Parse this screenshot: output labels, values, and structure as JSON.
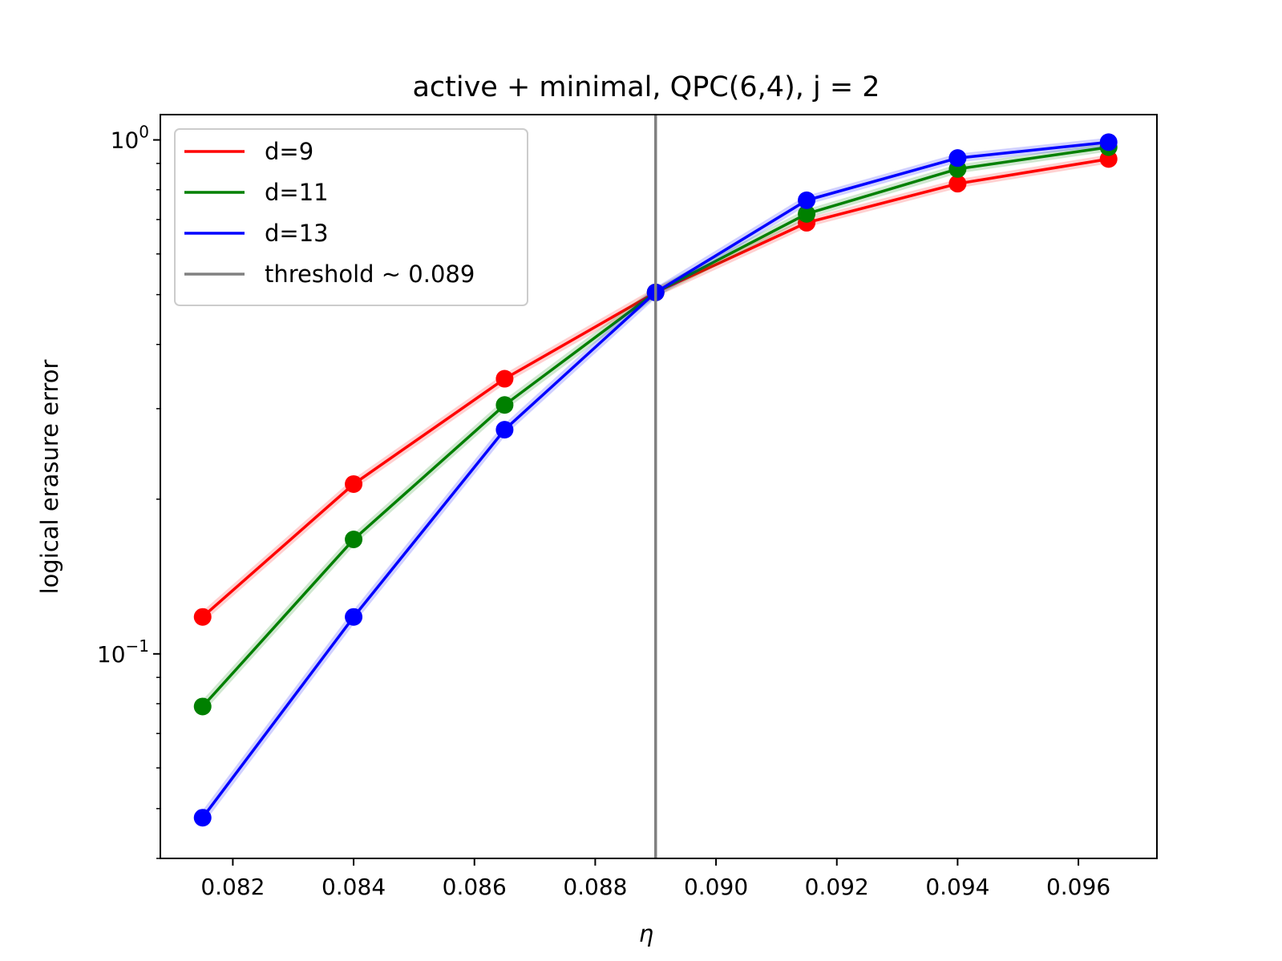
{
  "chart_data": {
    "type": "line",
    "title": "active + minimal, QPC(6,4), j = 2",
    "xlabel": "η",
    "ylabel": "logical erasure error",
    "yscale": "log",
    "xlim": [
      0.0808,
      0.0973
    ],
    "ylim": [
      0.04,
      1.12
    ],
    "x": [
      0.0815,
      0.084,
      0.0865,
      0.089,
      0.0915,
      0.094,
      0.0965
    ],
    "xticks": [
      0.082,
      0.084,
      0.086,
      0.088,
      0.09,
      0.092,
      0.094,
      0.096
    ],
    "xtick_labels": [
      "0.082",
      "0.084",
      "0.086",
      "0.088",
      "0.090",
      "0.092",
      "0.094",
      "0.096"
    ],
    "yticks": [
      0.1,
      1.0
    ],
    "ytick_labels": [
      {
        "base": "10",
        "exp": "−1"
      },
      {
        "base": "10",
        "exp": "0"
      }
    ],
    "series": [
      {
        "name": "d=9",
        "color": "#ff0000",
        "values": [
          0.118,
          0.214,
          0.343,
          0.505,
          0.69,
          0.822,
          0.918
        ]
      },
      {
        "name": "d=11",
        "color": "#008000",
        "values": [
          0.079,
          0.167,
          0.305,
          0.505,
          0.718,
          0.878,
          0.968
        ]
      },
      {
        "name": "d=13",
        "color": "#0000ff",
        "values": [
          0.048,
          0.118,
          0.273,
          0.505,
          0.763,
          0.922,
          0.99
        ]
      }
    ],
    "threshold": {
      "name": "threshold ~ 0.089",
      "x": 0.089,
      "color": "#808080"
    },
    "legend": {
      "location": "upper-left"
    },
    "grid": false
  }
}
